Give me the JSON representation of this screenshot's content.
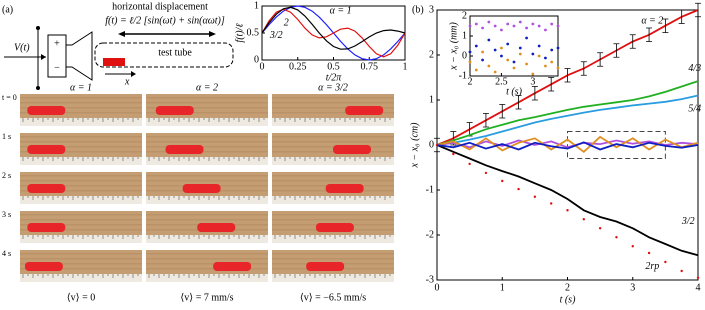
{
  "panel_a": {
    "label": "(a)",
    "schematic": {
      "title": "horizontal displacement",
      "formula": "f(t) = ℓ/2 [sin(ωt) + sin(αωt)]",
      "input": "V(t)",
      "tube": "test tube",
      "axis": "x"
    },
    "photos": {
      "columns": [
        "α = 1",
        "α = 2",
        "α = 3/2"
      ],
      "times": [
        "t = 0",
        "1 s",
        "2 s",
        "3 s",
        "4 s"
      ],
      "velocities": [
        "⟨v⟩ = 0",
        "⟨v⟩ = 7 mm/s",
        "⟨v⟩ = −6.5 mm/s"
      ]
    }
  },
  "panel_b": {
    "label": "(b)"
  },
  "chart_data": [
    {
      "type": "line",
      "xlabel": "t/2π",
      "ylabel": "f(t)/ℓ",
      "x": [
        0,
        0.05,
        0.1,
        0.15,
        0.2,
        0.25,
        0.3,
        0.35,
        0.4,
        0.45,
        0.5,
        0.55,
        0.6,
        0.65,
        0.7,
        0.75,
        0.8,
        0.85,
        0.9,
        0.95,
        1
      ],
      "xlim": [
        0,
        1
      ],
      "xticks": [
        0,
        0.25,
        0.5,
        0.75,
        1
      ],
      "ylim": [
        0,
        1
      ],
      "yticks": [
        0,
        0.5,
        1
      ],
      "series": [
        {
          "name": "α = 1",
          "color": "#1f1fff",
          "values": [
            0.5,
            0.655,
            0.794,
            0.905,
            0.976,
            1,
            0.976,
            0.905,
            0.794,
            0.655,
            0.5,
            0.345,
            0.206,
            0.095,
            0.024,
            0,
            0.024,
            0.095,
            0.206,
            0.345,
            0.5
          ]
        },
        {
          "name": "2",
          "color": "#e01010",
          "values": [
            0.5,
            0.724,
            0.885,
            0.94,
            0.885,
            0.75,
            0.591,
            0.465,
            0.409,
            0.43,
            0.5,
            0.57,
            0.591,
            0.536,
            0.409,
            0.25,
            0.115,
            0.06,
            0.115,
            0.276,
            0.5
          ]
        },
        {
          "name": "3/2",
          "color": "#000000",
          "values": [
            0.5,
            0.691,
            0.849,
            0.949,
            0.976,
            0.927,
            0.815,
            0.663,
            0.5,
            0.355,
            0.25,
            0.2,
            0.206,
            0.259,
            0.34,
            0.427,
            0.5,
            0.545,
            0.555,
            0.536,
            0.5
          ]
        }
      ]
    },
    {
      "type": "line",
      "xlabel": "t (s)",
      "ylabel": "x − x₀ (cm)",
      "x": [
        0,
        0.25,
        0.5,
        0.75,
        1,
        1.25,
        1.5,
        1.75,
        2,
        2.25,
        2.5,
        2.75,
        3,
        3.25,
        3.5,
        3.75,
        4
      ],
      "xlim": [
        0,
        4
      ],
      "xticks": [
        0,
        1,
        2,
        3,
        4
      ],
      "ylim": [
        -3,
        3
      ],
      "yticks": [
        -3,
        -2,
        -1,
        0,
        1,
        2,
        3
      ],
      "zoom_box": {
        "x": [
          2,
          3.5
        ],
        "y": [
          -0.3,
          0.3
        ]
      },
      "series": [
        {
          "name": "α = 2",
          "color": "#e01010",
          "values": [
            0,
            0.15,
            0.35,
            0.55,
            0.75,
            0.95,
            1.15,
            1.35,
            1.55,
            1.7,
            1.9,
            2.1,
            2.3,
            2.45,
            2.65,
            2.85,
            3
          ],
          "errors": [
            0.15,
            0.15,
            0.15,
            0.15,
            0.15,
            0.15,
            0.15,
            0.15,
            0.15,
            0.15,
            0.15,
            0.15,
            0.15,
            0.15,
            0.15,
            0.15,
            0.15
          ]
        },
        {
          "name": "4/3",
          "color": "#22b022",
          "values": [
            0,
            0.1,
            0.22,
            0.35,
            0.45,
            0.55,
            0.62,
            0.7,
            0.78,
            0.85,
            0.9,
            0.95,
            1,
            1.08,
            1.18,
            1.3,
            1.42
          ]
        },
        {
          "name": "5/4",
          "color": "#2a9de0",
          "values": [
            0,
            0.05,
            0.12,
            0.2,
            0.3,
            0.4,
            0.5,
            0.58,
            0.65,
            0.72,
            0.78,
            0.83,
            0.88,
            0.92,
            0.96,
            1.02,
            1.1
          ]
        },
        {
          "name": "3/2",
          "color": "#000000",
          "values": [
            0,
            -0.15,
            -0.3,
            -0.45,
            -0.58,
            -0.7,
            -0.85,
            -1,
            -1.2,
            -1.45,
            -1.6,
            -1.7,
            -1.85,
            -2.05,
            -2.2,
            -2.35,
            -2.45
          ]
        },
        {
          "name": "2rp",
          "color": "#e01010",
          "style": "dots",
          "values": [
            0,
            -0.2,
            -0.42,
            -0.62,
            -0.8,
            -0.98,
            -1.15,
            -1.3,
            -1.45,
            -1.65,
            -1.85,
            -2.05,
            -2.25,
            -2.4,
            -2.6,
            -2.8,
            -2.95
          ]
        },
        {
          "color": "#b050e0",
          "values": [
            0,
            0.05,
            -0.05,
            0.08,
            -0.02,
            0.1,
            0,
            0.08,
            -0.05,
            0.05,
            0.02,
            0.1,
            0.03,
            0.08,
            0,
            0.05,
            0.02
          ]
        },
        {
          "color": "#e09020",
          "values": [
            0,
            0.08,
            -0.1,
            0.15,
            -0.12,
            0.05,
            0.15,
            -0.1,
            0.12,
            -0.15,
            0.18,
            -0.05,
            0.15,
            -0.1,
            0.12,
            -0.05,
            0.05
          ]
        },
        {
          "color": "#1020c0",
          "values": [
            0,
            -0.05,
            0.05,
            -0.08,
            0.02,
            -0.1,
            0.05,
            -0.03,
            -0.08,
            0.06,
            -0.1,
            0.02,
            -0.05,
            0.05,
            -0.02,
            -0.06,
            0
          ]
        }
      ]
    },
    {
      "type": "scatter",
      "xlabel": "t (s)",
      "ylabel": "x − x₀ (mm)",
      "x": [
        2,
        2.1,
        2.2,
        2.3,
        2.4,
        2.5,
        2.6,
        2.7,
        2.8,
        2.9,
        3,
        3.1,
        3.2,
        3.3,
        3.4
      ],
      "xlim": [
        2,
        3.4
      ],
      "xticks": [
        2,
        2.5,
        3
      ],
      "ylim": [
        -1,
        2
      ],
      "yticks": [
        -1,
        0,
        1,
        2
      ],
      "series": [
        {
          "color": "#b050e0",
          "values": [
            1.5,
            1.6,
            1.4,
            1.7,
            1.5,
            1.3,
            1.6,
            1.5,
            1.7,
            1.4,
            1.6,
            1.5,
            1.3,
            1.6,
            1.5
          ]
        },
        {
          "color": "#1020c0",
          "values": [
            0.2,
            0.5,
            -0.2,
            0.8,
            0.3,
            0,
            0.6,
            -0.3,
            0.4,
            0.9,
            0.1,
            0.5,
            -0.1,
            0.3,
            0.4
          ]
        },
        {
          "color": "#e09020",
          "values": [
            -0.3,
            -0.7,
            0.2,
            -0.5,
            -0.8,
            0.4,
            -0.2,
            -0.6,
            0.1,
            -0.4,
            -0.9,
            0,
            -0.5,
            -0.3,
            -0.6
          ]
        }
      ]
    }
  ]
}
